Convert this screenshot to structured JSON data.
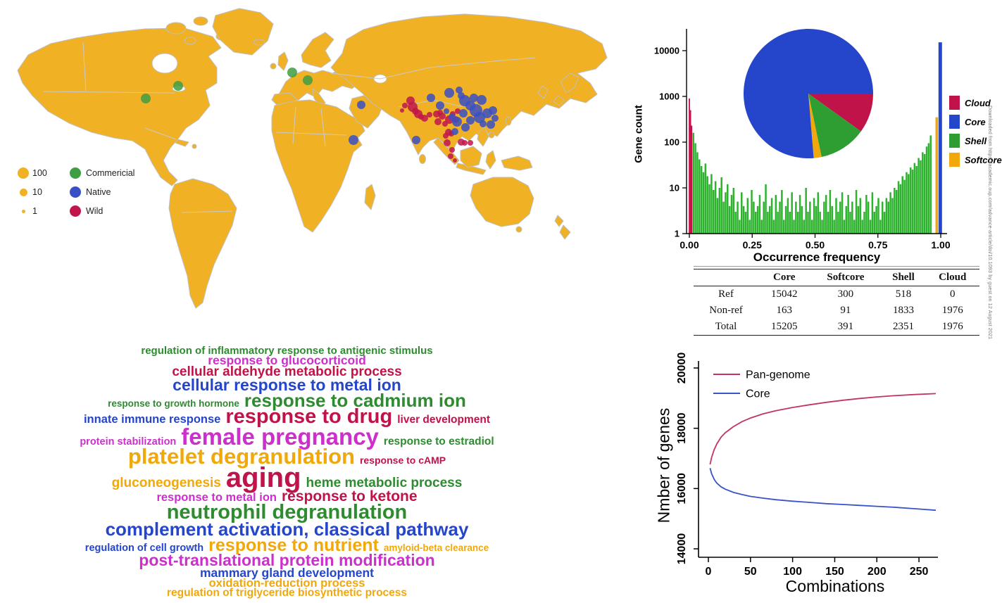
{
  "palette": {
    "land": "#F0B124",
    "border_gray": "#BFBFBF",
    "gold": "#F0A80A",
    "crimson": "#C01349",
    "blue": "#2545CB",
    "hist_green": "#2DB32D",
    "shell_green": "#2E9E32",
    "word_green": "#2E8B30",
    "magenta": "#CC2FCC",
    "map_green": "#3F9E42",
    "map_blue": "#3A50C5",
    "map_red": "#C0164C",
    "pan_red": "#C23560",
    "core_blue": "#3854C6"
  },
  "side_note": "Downloaded from https://academic.oup.com/advance-article/doi/10.1093 by guest on 12 August 2021",
  "chart_data": [
    {
      "id": "sample-map",
      "type": "scatter",
      "description": "world map of sample origins, dot size = sample count",
      "legend_sizes": [
        {
          "label": "100",
          "r": 8
        },
        {
          "label": "10",
          "r": 5.5
        },
        {
          "label": "1",
          "r": 2.5
        }
      ],
      "groups": [
        {
          "label": "Commericial",
          "color_key": "map_green",
          "points": [
            [
              207,
              140,
              7
            ],
            [
              253,
              122,
              7
            ],
            [
              415,
              103,
              7
            ],
            [
              437,
              114,
              7
            ]
          ]
        },
        {
          "label": "Native",
          "color_key": "map_blue",
          "points": [
            [
              513,
              149,
              6
            ],
            [
              502,
              199,
              7
            ],
            [
              591,
              199,
              6
            ],
            [
              612,
              139,
              6
            ],
            [
              638,
              132,
              7
            ],
            [
              652,
              128,
              5
            ],
            [
              625,
              150,
              6
            ],
            [
              660,
              143,
              8
            ],
            [
              673,
              139,
              6
            ],
            [
              684,
              142,
              7
            ],
            [
              658,
              161,
              6
            ],
            [
              642,
              166,
              5
            ],
            [
              649,
              173,
              7
            ],
            [
              668,
              171,
              6
            ],
            [
              681,
              167,
              8
            ],
            [
              692,
              161,
              7
            ],
            [
              700,
              157,
              6
            ],
            [
              686,
              176,
              5
            ],
            [
              661,
              181,
              6
            ],
            [
              646,
              187,
              5
            ],
            [
              697,
              177,
              6
            ],
            [
              703,
              168,
              5
            ],
            [
              676,
              157,
              9
            ],
            [
              668,
              150,
              7
            ],
            [
              634,
              158,
              4
            ],
            [
              655,
              136,
              5
            ]
          ]
        },
        {
          "label": "Wild",
          "color_key": "map_red",
          "points": [
            [
              583,
              143,
              6
            ],
            [
              586,
              152,
              7
            ],
            [
              590,
              158,
              5
            ],
            [
              594,
              162,
              6
            ],
            [
              598,
              166,
              4
            ],
            [
              603,
              168,
              5
            ],
            [
              610,
              163,
              4
            ],
            [
              620,
              162,
              5
            ],
            [
              625,
              160,
              4
            ],
            [
              628,
              165,
              5
            ],
            [
              638,
              170,
              6
            ],
            [
              643,
              162,
              4
            ],
            [
              647,
              170,
              5
            ],
            [
              632,
              176,
              4
            ],
            [
              622,
              173,
              5
            ],
            [
              637,
              188,
              5
            ],
            [
              641,
              190,
              4
            ],
            [
              635,
              203,
              5
            ],
            [
              655,
              202,
              5
            ],
            [
              660,
              203,
              4
            ],
            [
              642,
              213,
              4
            ],
            [
              640,
              222,
              4
            ],
            [
              646,
              228,
              3
            ],
            [
              575,
              150,
              4
            ],
            [
              571,
              157,
              3
            ],
            [
              650,
              158,
              4
            ],
            [
              633,
              193,
              4
            ],
            [
              668,
              203,
              4
            ]
          ]
        }
      ]
    },
    {
      "id": "occurrence-histogram",
      "type": "bar",
      "xlabel": "Occurrence frequency",
      "ylabel": "Gene count",
      "yscale": "log",
      "yticks": [
        1,
        10,
        100,
        1000,
        10000
      ],
      "xticks": [
        "0.00",
        "0.25",
        "0.50",
        "0.75",
        "1.00"
      ],
      "cloud_bars": {
        "x_start": 0.0,
        "bin_width": 0.0045,
        "color_key": "crimson",
        "values": [
          900,
          500,
          230
        ]
      },
      "shell_bars": {
        "x_start": 0.016,
        "bin_width": 0.008,
        "color_key": "hist_green",
        "values": [
          160,
          95,
          60,
          42,
          30,
          22,
          34,
          18,
          12,
          20,
          9,
          14,
          6,
          10,
          17,
          5,
          8,
          12,
          4,
          7,
          10,
          3,
          5,
          2,
          8,
          4,
          3,
          6,
          2,
          9,
          5,
          3,
          4,
          7,
          2,
          5,
          12,
          3,
          4,
          6,
          2,
          7,
          3,
          5,
          9,
          2,
          4,
          6,
          3,
          8,
          2,
          5,
          3,
          7,
          4,
          2,
          10,
          3,
          5,
          2,
          6,
          4,
          8,
          3,
          2,
          5,
          7,
          3,
          9,
          4,
          2,
          6,
          3,
          5,
          8,
          2,
          4,
          7,
          3,
          5,
          2,
          9,
          4,
          6,
          2,
          3,
          7,
          5,
          2,
          8,
          3,
          4,
          6,
          2,
          5,
          3,
          6,
          5,
          8,
          6,
          10,
          9,
          14,
          12,
          18,
          15,
          22,
          20,
          28,
          25,
          35,
          30,
          45,
          40,
          60,
          55,
          80,
          95,
          140
        ]
      },
      "softcore_bar": {
        "x": 0.984,
        "value": 350,
        "color_key": "gold"
      },
      "core_bar": {
        "x": 0.998,
        "value": 15205,
        "color_key": "blue"
      }
    },
    {
      "id": "category-pie",
      "type": "pie",
      "start_angle_deg": 0,
      "direction": "clockwise",
      "segments": [
        {
          "label": "Cloud",
          "value": 1976,
          "color_key": "crimson"
        },
        {
          "label": "Shell",
          "value": 2351,
          "color_key": "shell_green"
        },
        {
          "label": "Softcore",
          "value": 391,
          "color_key": "gold"
        },
        {
          "label": "Core",
          "value": 15205,
          "color_key": "blue"
        }
      ],
      "legend": [
        {
          "label": "Cloud",
          "color_key": "crimson"
        },
        {
          "label": "Core",
          "color_key": "blue"
        },
        {
          "label": "Shell",
          "color_key": "shell_green"
        },
        {
          "label": "Softcore",
          "color_key": "gold"
        }
      ]
    },
    {
      "id": "gene-table",
      "type": "table",
      "headers": [
        "",
        "Core",
        "Softcore",
        "Shell",
        "Cloud"
      ],
      "rows": [
        [
          "Ref",
          "15042",
          "300",
          "518",
          "0"
        ],
        [
          "Non-ref",
          "163",
          "91",
          "1833",
          "1976"
        ],
        [
          "Total",
          "15205",
          "391",
          "2351",
          "1976"
        ]
      ]
    },
    {
      "id": "go-wordcloud",
      "type": "wordcloud",
      "rows": [
        [
          [
            "regulation of inflammatory response to antigenic stimulus",
            "word_green",
            15
          ]
        ],
        [
          [
            "response to glucocorticoid",
            "magenta",
            17.5
          ]
        ],
        [
          [
            "cellular aldehyde metabolic process",
            "crimson",
            19
          ]
        ],
        [
          [
            "cellular response to metal ion",
            "blue",
            23
          ]
        ],
        [
          [
            "response to growth hormone",
            "word_green",
            13.5
          ],
          [
            "response to cadmium ion",
            "word_green",
            26
          ]
        ],
        [
          [
            "innate immune response",
            "blue",
            16.5
          ],
          [
            "response to drug",
            "crimson",
            29
          ],
          [
            "liver development",
            "crimson",
            15.5
          ]
        ],
        [
          [
            "protein stabilization",
            "magenta",
            14.5
          ],
          [
            "female pregnancy",
            "magenta",
            33
          ],
          [
            "response to estradiol",
            "word_green",
            15.5
          ]
        ],
        [
          [
            "platelet degranulation",
            "gold",
            31
          ],
          [
            "response to cAMP",
            "crimson",
            14
          ]
        ],
        [
          [
            "gluconeogenesis",
            "gold",
            19
          ],
          [
            "aging",
            "crimson",
            40
          ],
          [
            "heme metabolic process",
            "word_green",
            19
          ]
        ],
        [
          [
            "response to metal ion",
            "magenta",
            16.5
          ],
          [
            "response to ketone",
            "crimson",
            21
          ]
        ],
        [
          [
            "neutrophil degranulation",
            "word_green",
            29
          ]
        ],
        [
          [
            "complement activation, classical pathway",
            "blue",
            26
          ]
        ],
        [
          [
            "regulation of cell growth",
            "blue",
            14.5
          ],
          [
            "response to nutrient",
            "gold",
            25
          ],
          [
            "amyloid-beta clearance",
            "gold",
            13.5
          ]
        ],
        [
          [
            "post-translational protein modification",
            "magenta",
            23
          ]
        ],
        [
          [
            "mammary gland development",
            "blue",
            17.5
          ]
        ],
        [
          [
            "oxidation-reduction process",
            "gold",
            16.5
          ]
        ],
        [
          [
            "regulation of triglyceride biosynthetic process",
            "gold",
            15.5
          ]
        ]
      ]
    },
    {
      "id": "pan-genome-growth",
      "type": "line",
      "xlabel": "Combinations",
      "ylabel": "Nmber of genes",
      "xticks": [
        0,
        50,
        100,
        150,
        200,
        250
      ],
      "yticks": [
        14000,
        16000,
        18000,
        20000
      ],
      "xlim": [
        0,
        270
      ],
      "ylim": [
        13500,
        20500
      ],
      "series": [
        {
          "name": "Pan-genome",
          "color_key": "pan_red",
          "points": [
            [
              2,
              16800
            ],
            [
              4,
              17050
            ],
            [
              7,
              17300
            ],
            [
              10,
              17480
            ],
            [
              15,
              17700
            ],
            [
              20,
              17850
            ],
            [
              30,
              18060
            ],
            [
              40,
              18220
            ],
            [
              50,
              18340
            ],
            [
              65,
              18480
            ],
            [
              80,
              18580
            ],
            [
              100,
              18690
            ],
            [
              120,
              18780
            ],
            [
              140,
              18860
            ],
            [
              160,
              18930
            ],
            [
              180,
              18990
            ],
            [
              200,
              19040
            ],
            [
              220,
              19080
            ],
            [
              245,
              19120
            ],
            [
              270,
              19150
            ]
          ]
        },
        {
          "name": "Core",
          "color_key": "core_blue",
          "points": [
            [
              2,
              16680
            ],
            [
              4,
              16480
            ],
            [
              7,
              16300
            ],
            [
              10,
              16180
            ],
            [
              15,
              16060
            ],
            [
              20,
              15980
            ],
            [
              30,
              15870
            ],
            [
              40,
              15800
            ],
            [
              50,
              15740
            ],
            [
              65,
              15680
            ],
            [
              80,
              15630
            ],
            [
              100,
              15580
            ],
            [
              120,
              15540
            ],
            [
              140,
              15500
            ],
            [
              160,
              15470
            ],
            [
              180,
              15440
            ],
            [
              200,
              15410
            ],
            [
              220,
              15380
            ],
            [
              245,
              15330
            ],
            [
              270,
              15280
            ]
          ]
        }
      ]
    }
  ]
}
